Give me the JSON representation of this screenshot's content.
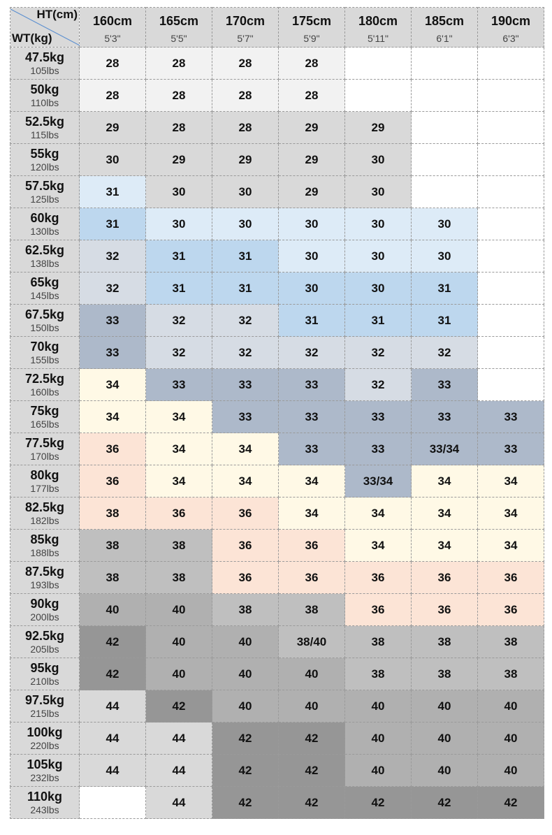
{
  "header": {
    "corner_top": "HT(cm)",
    "corner_bottom": "WT(kg)",
    "columns": [
      {
        "cm": "160cm",
        "ft": "5'3\""
      },
      {
        "cm": "165cm",
        "ft": "5'5\""
      },
      {
        "cm": "170cm",
        "ft": "5'7\""
      },
      {
        "cm": "175cm",
        "ft": "5'9\""
      },
      {
        "cm": "180cm",
        "ft": "5'11\""
      },
      {
        "cm": "185cm",
        "ft": "6'1\""
      },
      {
        "cm": "190cm",
        "ft": "6'3\""
      }
    ]
  },
  "table": {
    "rows": [
      {
        "kg": "47.5kg",
        "lbs": "105lbs",
        "cells": [
          "28",
          "28",
          "28",
          "28",
          null,
          null,
          null
        ],
        "shades": [
          "#f2f2f2",
          "#f2f2f2",
          "#f2f2f2",
          "#f2f2f2",
          "#ffffff",
          "#ffffff",
          "#ffffff"
        ]
      },
      {
        "kg": "50kg",
        "lbs": "110lbs",
        "cells": [
          "28",
          "28",
          "28",
          "28",
          null,
          null,
          null
        ],
        "shades": [
          "#f2f2f2",
          "#f2f2f2",
          "#f2f2f2",
          "#f2f2f2",
          "#ffffff",
          "#ffffff",
          "#ffffff"
        ]
      },
      {
        "kg": "52.5kg",
        "lbs": "115lbs",
        "cells": [
          "29",
          "28",
          "28",
          "29",
          "29",
          null,
          null
        ],
        "shades": [
          "#d9d9d9",
          "#d9d9d9",
          "#d9d9d9",
          "#d9d9d9",
          "#d9d9d9",
          "#ffffff",
          "#ffffff"
        ]
      },
      {
        "kg": "55kg",
        "lbs": "120lbs",
        "cells": [
          "30",
          "29",
          "29",
          "29",
          "30",
          null,
          null
        ],
        "shades": [
          "#d9d9d9",
          "#d9d9d9",
          "#d9d9d9",
          "#d9d9d9",
          "#d9d9d9",
          "#ffffff",
          "#ffffff"
        ]
      },
      {
        "kg": "57.5kg",
        "lbs": "125lbs",
        "cells": [
          "31",
          "30",
          "30",
          "29",
          "30",
          null,
          null
        ],
        "shades": [
          "#ddebf7",
          "#d9d9d9",
          "#d9d9d9",
          "#d9d9d9",
          "#d9d9d9",
          "#ffffff",
          "#ffffff"
        ]
      },
      {
        "kg": "60kg",
        "lbs": "130lbs",
        "cells": [
          "31",
          "30",
          "30",
          "30",
          "30",
          "30",
          null
        ],
        "shades": [
          "#bdd7ee",
          "#ddebf7",
          "#ddebf7",
          "#ddebf7",
          "#ddebf7",
          "#ddebf7",
          "#ffffff"
        ]
      },
      {
        "kg": "62.5kg",
        "lbs": "138lbs",
        "cells": [
          "32",
          "31",
          "31",
          "30",
          "30",
          "30",
          null
        ],
        "shades": [
          "#d6dce4",
          "#bdd7ee",
          "#bdd7ee",
          "#ddebf7",
          "#ddebf7",
          "#ddebf7",
          "#ffffff"
        ]
      },
      {
        "kg": "65kg",
        "lbs": "145lbs",
        "cells": [
          "32",
          "31",
          "31",
          "30",
          "30",
          "31",
          null
        ],
        "shades": [
          "#d6dce4",
          "#bdd7ee",
          "#bdd7ee",
          "#bdd7ee",
          "#bdd7ee",
          "#bdd7ee",
          "#ffffff"
        ]
      },
      {
        "kg": "67.5kg",
        "lbs": "150lbs",
        "cells": [
          "33",
          "32",
          "32",
          "31",
          "31",
          "31",
          null
        ],
        "shades": [
          "#adb9ca",
          "#d6dce4",
          "#d6dce4",
          "#bdd7ee",
          "#bdd7ee",
          "#bdd7ee",
          "#ffffff"
        ]
      },
      {
        "kg": "70kg",
        "lbs": "155lbs",
        "cells": [
          "33",
          "32",
          "32",
          "32",
          "32",
          "32",
          null
        ],
        "shades": [
          "#adb9ca",
          "#d6dce4",
          "#d6dce4",
          "#d6dce4",
          "#d6dce4",
          "#d6dce4",
          "#ffffff"
        ]
      },
      {
        "kg": "72.5kg",
        "lbs": "160lbs",
        "cells": [
          "34",
          "33",
          "33",
          "33",
          "32",
          "33",
          null
        ],
        "shades": [
          "#fff9e6",
          "#adb9ca",
          "#adb9ca",
          "#adb9ca",
          "#d6dce4",
          "#adb9ca",
          "#ffffff"
        ]
      },
      {
        "kg": "75kg",
        "lbs": "165lbs",
        "cells": [
          "34",
          "34",
          "33",
          "33",
          "33",
          "33",
          "33"
        ],
        "shades": [
          "#fff9e6",
          "#fff9e6",
          "#adb9ca",
          "#adb9ca",
          "#adb9ca",
          "#adb9ca",
          "#adb9ca"
        ]
      },
      {
        "kg": "77.5kg",
        "lbs": "170lbs",
        "cells": [
          "36",
          "34",
          "34",
          "33",
          "33",
          "33/34",
          "33"
        ],
        "shades": [
          "#fce4d6",
          "#fff9e6",
          "#fff9e6",
          "#adb9ca",
          "#adb9ca",
          "#adb9ca",
          "#adb9ca"
        ]
      },
      {
        "kg": "80kg",
        "lbs": "177lbs",
        "cells": [
          "36",
          "34",
          "34",
          "34",
          "33/34",
          "34",
          "34"
        ],
        "shades": [
          "#fce4d6",
          "#fff9e6",
          "#fff9e6",
          "#fff9e6",
          "#adb9ca",
          "#fff9e6",
          "#fff9e6"
        ]
      },
      {
        "kg": "82.5kg",
        "lbs": "182lbs",
        "cells": [
          "38",
          "36",
          "36",
          "34",
          "34",
          "34",
          "34"
        ],
        "shades": [
          "#fce4d6",
          "#fce4d6",
          "#fce4d6",
          "#fff9e6",
          "#fff9e6",
          "#fff9e6",
          "#fff9e6"
        ]
      },
      {
        "kg": "85kg",
        "lbs": "188lbs",
        "cells": [
          "38",
          "38",
          "36",
          "36",
          "34",
          "34",
          "34"
        ],
        "shades": [
          "#bfbfbf",
          "#bfbfbf",
          "#fce4d6",
          "#fce4d6",
          "#fff9e6",
          "#fff9e6",
          "#fff9e6"
        ]
      },
      {
        "kg": "87.5kg",
        "lbs": "193lbs",
        "cells": [
          "38",
          "38",
          "36",
          "36",
          "36",
          "36",
          "36"
        ],
        "shades": [
          "#bfbfbf",
          "#bfbfbf",
          "#fce4d6",
          "#fce4d6",
          "#fce4d6",
          "#fce4d6",
          "#fce4d6"
        ]
      },
      {
        "kg": "90kg",
        "lbs": "200lbs",
        "cells": [
          "40",
          "40",
          "38",
          "38",
          "36",
          "36",
          "36"
        ],
        "shades": [
          "#b0b0b0",
          "#b0b0b0",
          "#bfbfbf",
          "#bfbfbf",
          "#fce4d6",
          "#fce4d6",
          "#fce4d6"
        ]
      },
      {
        "kg": "92.5kg",
        "lbs": "205lbs",
        "cells": [
          "42",
          "40",
          "40",
          "38/40",
          "38",
          "38",
          "38"
        ],
        "shades": [
          "#969696",
          "#b0b0b0",
          "#b0b0b0",
          "#bfbfbf",
          "#bfbfbf",
          "#bfbfbf",
          "#bfbfbf"
        ]
      },
      {
        "kg": "95kg",
        "lbs": "210lbs",
        "cells": [
          "42",
          "40",
          "40",
          "40",
          "38",
          "38",
          "38"
        ],
        "shades": [
          "#969696",
          "#b0b0b0",
          "#b0b0b0",
          "#b0b0b0",
          "#bfbfbf",
          "#bfbfbf",
          "#bfbfbf"
        ]
      },
      {
        "kg": "97.5kg",
        "lbs": "215lbs",
        "cells": [
          "44",
          "42",
          "40",
          "40",
          "40",
          "40",
          "40"
        ],
        "shades": [
          "#d9d9d9",
          "#969696",
          "#b0b0b0",
          "#b0b0b0",
          "#b0b0b0",
          "#b0b0b0",
          "#b0b0b0"
        ]
      },
      {
        "kg": "100kg",
        "lbs": "220lbs",
        "cells": [
          "44",
          "44",
          "42",
          "42",
          "40",
          "40",
          "40"
        ],
        "shades": [
          "#d9d9d9",
          "#d9d9d9",
          "#969696",
          "#969696",
          "#b0b0b0",
          "#b0b0b0",
          "#b0b0b0"
        ]
      },
      {
        "kg": "105kg",
        "lbs": "232lbs",
        "cells": [
          "44",
          "44",
          "42",
          "42",
          "40",
          "40",
          "40"
        ],
        "shades": [
          "#d9d9d9",
          "#d9d9d9",
          "#969696",
          "#969696",
          "#b0b0b0",
          "#b0b0b0",
          "#b0b0b0"
        ]
      },
      {
        "kg": "110kg",
        "lbs": "243lbs",
        "cells": [
          null,
          "44",
          "42",
          "42",
          "42",
          "42",
          "42"
        ],
        "shades": [
          "#ffffff",
          "#d9d9d9",
          "#969696",
          "#969696",
          "#969696",
          "#969696",
          "#969696"
        ]
      }
    ]
  }
}
